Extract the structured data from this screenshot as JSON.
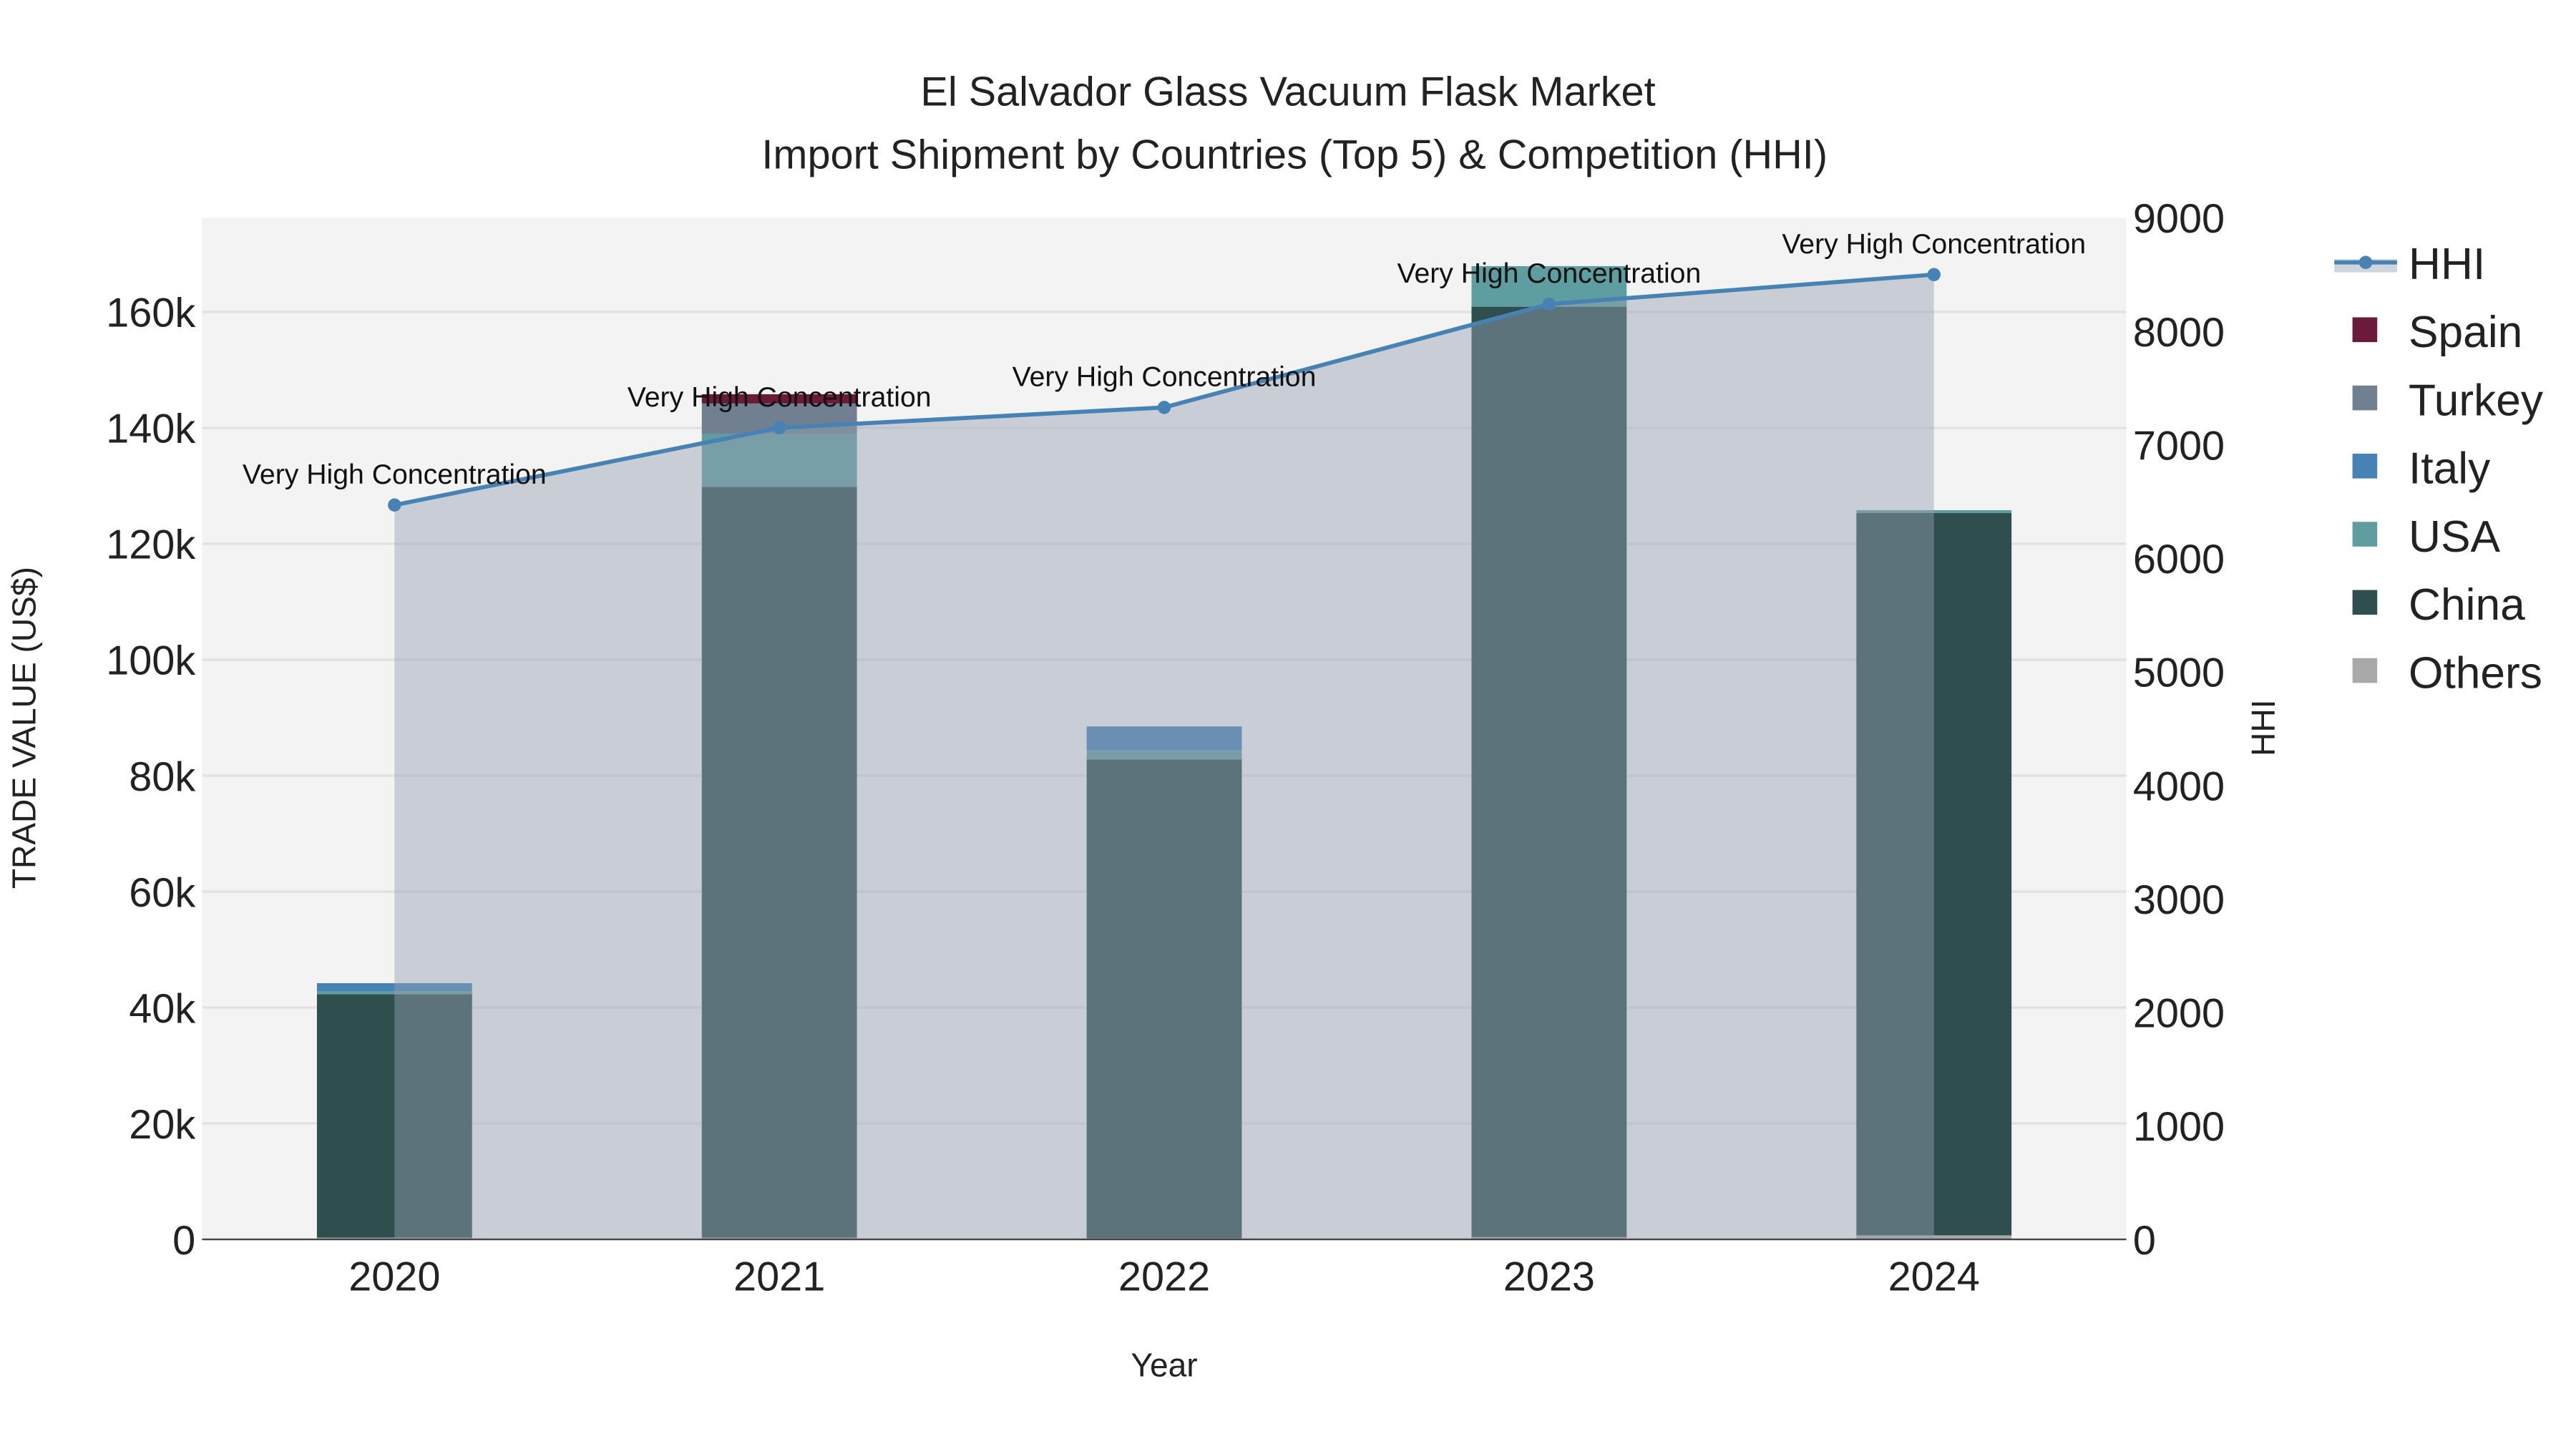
{
  "chart_data": {
    "type": "bar",
    "title": "El Salvador Glass Vacuum Flask Market",
    "subtitle": "Import Shipment by Countries (Top 5) & Competition (HHI)",
    "xlabel": "Year",
    "ylabel": "TRADE VALUE (US$)",
    "y2label": "HHI",
    "categories": [
      "2020",
      "2021",
      "2022",
      "2023",
      "2024"
    ],
    "ylim": [
      0,
      176000
    ],
    "y2lim": [
      0,
      9000
    ],
    "yticks": [
      0,
      20000,
      40000,
      60000,
      80000,
      100000,
      120000,
      140000,
      160000
    ],
    "ytick_labels": [
      "0",
      "20k",
      "40k",
      "60k",
      "80k",
      "100k",
      "120k",
      "140k",
      "160k"
    ],
    "y2ticks": [
      0,
      1000,
      2000,
      3000,
      4000,
      5000,
      6000,
      7000,
      8000,
      9000
    ],
    "y2tick_labels": [
      "0",
      "1000",
      "2000",
      "3000",
      "4000",
      "5000",
      "6000",
      "7000",
      "8000",
      "9000"
    ],
    "series": [
      {
        "name": "Others",
        "color": "#a9a9a9",
        "values": [
          300,
          300,
          200,
          400,
          700
        ]
      },
      {
        "name": "China",
        "color": "#2f4f4f",
        "values": [
          42000,
          129500,
          82600,
          160500,
          124600
        ]
      },
      {
        "name": "USA",
        "color": "#5f9ea0",
        "values": [
          500,
          9100,
          1600,
          7000,
          500
        ]
      },
      {
        "name": "Italy",
        "color": "#4682b4",
        "values": [
          1400,
          0,
          4100,
          0,
          0
        ]
      },
      {
        "name": "Turkey",
        "color": "#708090",
        "values": [
          0,
          5300,
          0,
          0,
          0
        ]
      },
      {
        "name": "Spain",
        "color": "#6b1a3a",
        "values": [
          0,
          1600,
          0,
          0,
          0
        ]
      }
    ],
    "hhi": {
      "name": "HHI",
      "color": "#4682b4",
      "values": [
        6470,
        7150,
        7330,
        8240,
        8500
      ]
    },
    "annotations": [
      "Very High Concentration",
      "Very High Concentration",
      "Very High Concentration",
      "Very High Concentration",
      "Very High Concentration"
    ],
    "legend": [
      "HHI",
      "Spain",
      "Turkey",
      "Italy",
      "USA",
      "China",
      "Others"
    ],
    "legend_position": "right",
    "grid": true
  }
}
